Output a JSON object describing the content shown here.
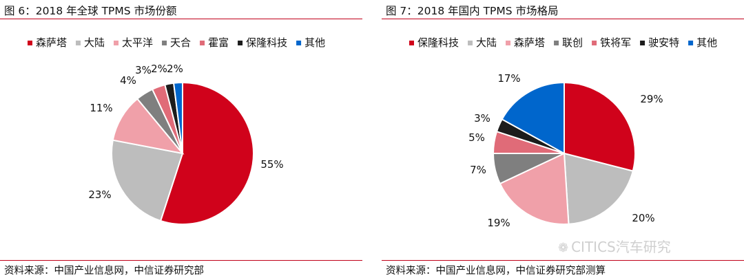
{
  "chart_data": [
    {
      "type": "pie",
      "title": "图 6：2018 年全球 TPMS 市场份额",
      "source": "资料来源：中国产业信息网，中信证券研究部",
      "categories": [
        "森萨塔",
        "大陆",
        "太平洋",
        "天合",
        "霍富",
        "保隆科技",
        "其他"
      ],
      "values": [
        55,
        23,
        11,
        4,
        3,
        2,
        2
      ],
      "data_labels": [
        "55%",
        "23%",
        "11%",
        "4%",
        "3%",
        "2%",
        "2%"
      ],
      "colors": [
        "#d0021b",
        "#bdbdbd",
        "#f0a0a9",
        "#7f7f7f",
        "#e06b78",
        "#1c1c1c",
        "#0066cc"
      ],
      "legend_position": "top"
    },
    {
      "type": "pie",
      "title": "图 7：2018 年国内 TPMS 市场格局",
      "source": "资料来源：中国产业信息网，中信证券研究部测算",
      "categories": [
        "保隆科技",
        "大陆",
        "森萨塔",
        "联创",
        "铁将军",
        "驶安特",
        "其他"
      ],
      "values": [
        29,
        20,
        19,
        7,
        5,
        3,
        17
      ],
      "data_labels": [
        "29%",
        "20%",
        "19%",
        "7%",
        "5%",
        "3%",
        "17%"
      ],
      "colors": [
        "#d0021b",
        "#bdbdbd",
        "#f0a0a9",
        "#7f7f7f",
        "#e06b78",
        "#1c1c1c",
        "#0066cc"
      ],
      "legend_position": "top"
    }
  ],
  "watermark": {
    "text": "CITICS汽车研究",
    "icon": "wechat-icon"
  }
}
